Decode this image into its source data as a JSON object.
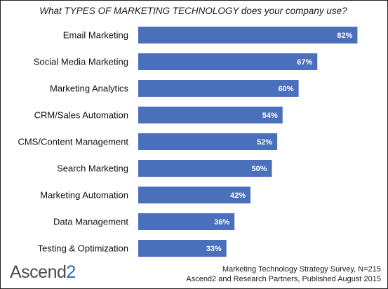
{
  "chart_data": {
    "type": "bar",
    "orientation": "horizontal",
    "title": "What TYPES OF MARKETING TECHNOLOGY does your company use?",
    "categories": [
      "Email Marketing",
      "Social Media Marketing",
      "Marketing Analytics",
      "CRM/Sales Automation",
      "CMS/Content Management",
      "Search Marketing",
      "Marketing Automation",
      "Data Management",
      "Testing & Optimization"
    ],
    "values": [
      82,
      67,
      60,
      54,
      52,
      50,
      42,
      36,
      33
    ],
    "value_labels": [
      "82%",
      "67%",
      "60%",
      "54%",
      "52%",
      "50%",
      "42%",
      "36%",
      "33%"
    ],
    "xlim": [
      0,
      100
    ],
    "bar_color": "#4a6fbb",
    "grid": false
  },
  "logo": {
    "text": "Ascend",
    "number": "2",
    "text_color": "#4a4a4a",
    "number_color": "#2e6bb5"
  },
  "source": {
    "line1": "Marketing Technology Strategy Survey, N=215",
    "line2": "Ascend2 and Research Partners, Published August 2015"
  }
}
